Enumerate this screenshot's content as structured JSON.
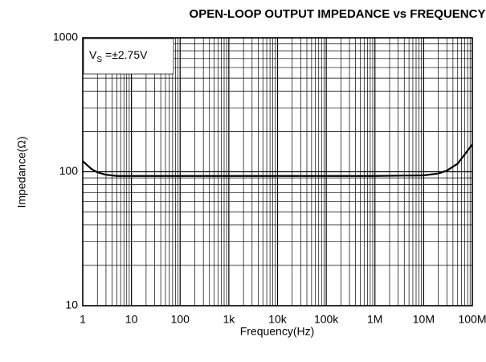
{
  "chart_data": {
    "type": "line",
    "title": "OPEN-LOOP OUTPUT IMPEDANCE vs FREQUENCY",
    "x_label": "Frequency(Hz)",
    "y_label": "Impedance(Ω)",
    "annotation": {
      "main": "V",
      "sub": "S",
      "rest": "=±2.75V"
    },
    "x": [
      1,
      1.5,
      2,
      3,
      5,
      10,
      100,
      1000,
      10000,
      100000,
      1000000,
      10000000,
      20000000,
      30000000,
      50000000,
      70000000,
      100000000
    ],
    "series": [
      {
        "name": "Impedance",
        "color": "#000000",
        "values": [
          120,
          105,
          99,
          95,
          93,
          93,
          93,
          93,
          93,
          93,
          93,
          94,
          97,
          102,
          115,
          135,
          160
        ]
      }
    ],
    "xlim": [
      1,
      100000000
    ],
    "ylim": [
      10,
      1000
    ],
    "xticks": [
      1,
      10,
      100,
      {
        "value": 1000,
        "label": "1k"
      },
      {
        "value": 10000,
        "label": "10k"
      },
      {
        "value": 100000,
        "label": "100k"
      },
      {
        "value": 1000000,
        "label": "1M"
      },
      {
        "value": 10000000,
        "label": "10M"
      },
      {
        "value": 100000000,
        "label": "100M"
      }
    ],
    "yticks": [
      10,
      100,
      1000
    ],
    "xscale": "log",
    "yscale": "log",
    "grid": true
  }
}
